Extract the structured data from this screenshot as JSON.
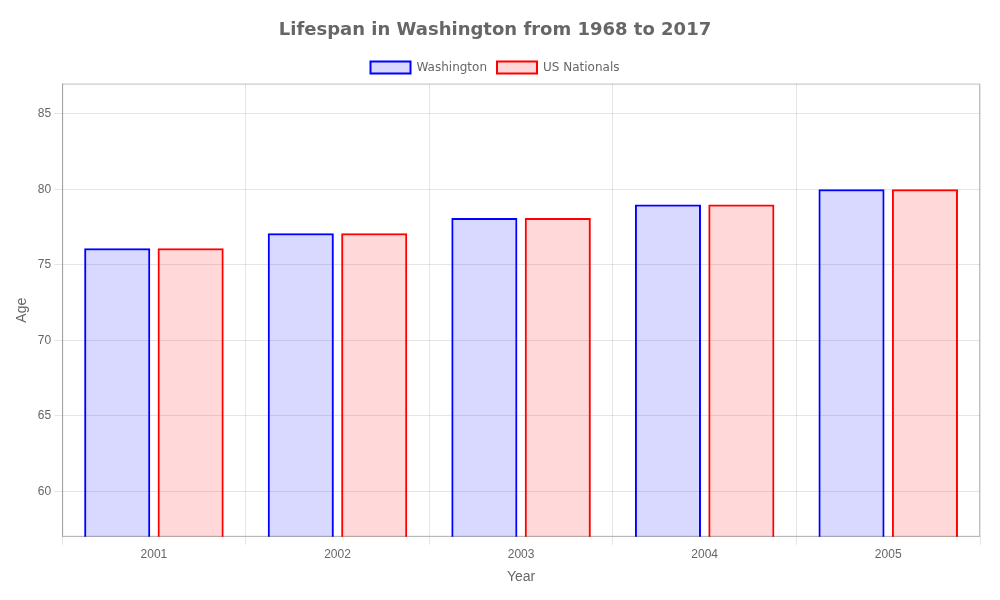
{
  "chart_data": {
    "type": "bar",
    "title": "Lifespan in Washington from 1968 to 2017",
    "xlabel": "Year",
    "ylabel": "Age",
    "categories": [
      "2001",
      "2002",
      "2003",
      "2004",
      "2005"
    ],
    "series": [
      {
        "name": "Washington",
        "color": "#0000ff",
        "values": [
          76.1,
          77.1,
          78.1,
          79.0,
          80.0
        ]
      },
      {
        "name": "US Nationals",
        "color": "#ff0000",
        "values": [
          76.1,
          77.1,
          78.1,
          79.0,
          80.0
        ]
      }
    ],
    "ylim": [
      57,
      87
    ],
    "yticks": [
      60,
      65,
      70,
      75,
      80,
      85
    ],
    "grid": true,
    "legend": "top"
  }
}
